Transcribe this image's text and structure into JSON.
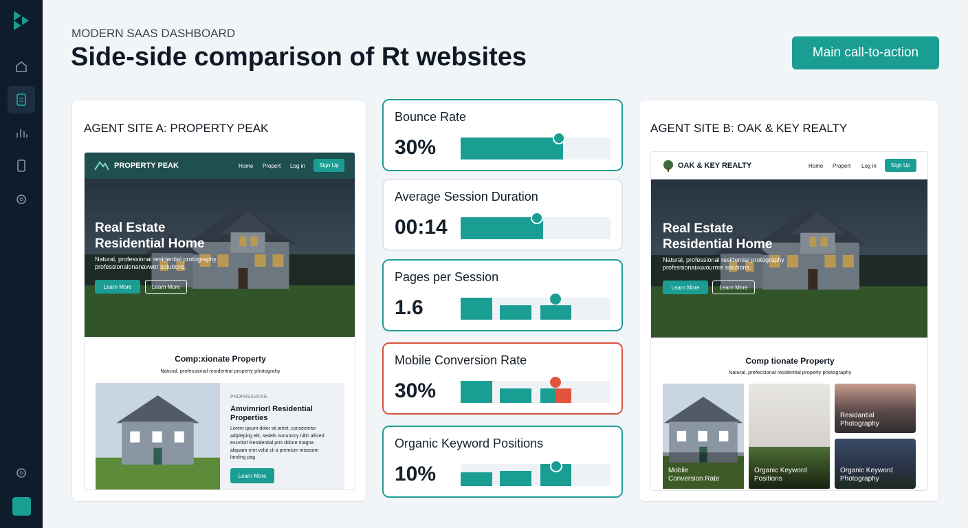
{
  "header": {
    "eyebrow": "MODERN SAAS DASHBOARD",
    "title": "Side-side comparison of Rt websites",
    "cta": "Main call-to-action"
  },
  "site_a": {
    "heading": "AGENT SITE A: PROPERTY PEAK",
    "nav": {
      "brand": "PROPERTY PEAK",
      "links": [
        "Home",
        "Propert",
        "Log in"
      ],
      "signup": "Sign Up"
    },
    "hero": {
      "title_lines": [
        "Real Estate",
        "Residential Home"
      ],
      "text_lines": [
        "Natural, professional residential protography",
        "professionaionanavwer solutions."
      ],
      "buttons": [
        "Learn More",
        "Learn More"
      ]
    },
    "section": {
      "title": "Comp:xionate Property",
      "subtitle": "Natural, professional residential property photograhy"
    },
    "feature": {
      "eyebrow": "PROPRS3VAIXE",
      "title_lines": [
        "Amvimriorl Residential",
        "Properties"
      ],
      "body_lines": [
        "Lorem ipsum dolor sit amet, consectetur",
        "adipleping elit, sedels nonummy nibh alliced",
        "exsvtiorl Residential prrs dolore magna",
        "aliquam ernt volut cli a premium misssom",
        "landing pag."
      ],
      "button": "Learn More"
    }
  },
  "metrics": [
    {
      "label": "Bounce Rate",
      "value": "30%"
    },
    {
      "label": "Average Session Duration",
      "value": "00:14"
    },
    {
      "label": "Pages per Session",
      "value": "1.6"
    },
    {
      "label": "Mobile Conversion Rate",
      "value": "30%"
    },
    {
      "label": "Organic Keyword Positions",
      "value": "10%"
    }
  ],
  "site_b": {
    "heading": "AGENT SITE B: OAK & KEY REALTY",
    "nav": {
      "brand": "OAK & KEY REALTY",
      "links": [
        "Home",
        "Propert",
        "Log in"
      ],
      "signup": "Sign Up"
    },
    "hero": {
      "title_lines": [
        "Real Estate",
        "Residential Home"
      ],
      "text_lines": [
        "Natural, professional residential protography",
        "professionaixuvourme solutions."
      ],
      "buttons": [
        "Learn More",
        "Learn More"
      ]
    },
    "section": {
      "title": "Comp tionate Property",
      "subtitle": "Natural, prefecsional residential property photography"
    },
    "gallery": [
      {
        "lines": [
          "Mobile",
          "Conversion Rate"
        ]
      },
      {
        "lines": [
          "Organic Keyword",
          "Positions"
        ]
      },
      {
        "lines": [
          "Residantial",
          "Photography"
        ]
      },
      {
        "lines": [
          "Organic Keyword",
          "Photography"
        ]
      }
    ]
  }
}
